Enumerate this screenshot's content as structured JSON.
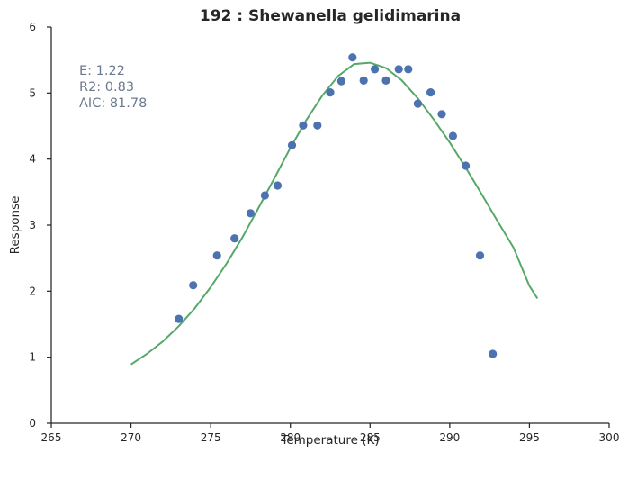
{
  "chart_data": {
    "type": "scatter",
    "title": "192 : Shewanella gelidimarina",
    "xlabel": "Temperature (K)",
    "ylabel": "Response",
    "xlim": [
      265,
      300
    ],
    "ylim": [
      0,
      6
    ],
    "x_ticks": [
      "265",
      "270",
      "275",
      "280",
      "285",
      "290",
      "295",
      "300"
    ],
    "y_ticks": [
      "0",
      "1",
      "2",
      "3",
      "4",
      "5",
      "6"
    ],
    "grid": false,
    "stats": {
      "e_label": "E:  1.22",
      "r2_label": "R2:  0.83",
      "aic_label": "AIC: 81.78"
    },
    "colors": {
      "points": "#4c72b0",
      "fit_line": "#55a868",
      "stats_text": "#6c7a8f"
    },
    "series": [
      {
        "type": "scatter",
        "x": [
          273.0,
          273.9,
          275.4,
          276.5,
          277.5,
          278.4,
          279.2,
          280.1,
          280.8,
          281.7,
          282.5,
          283.2,
          283.9,
          284.6,
          285.3,
          286.0,
          286.8,
          287.4,
          288.0,
          288.8,
          289.5,
          290.2,
          291.0,
          291.9,
          292.7
        ],
        "y": [
          1.58,
          2.09,
          2.54,
          2.8,
          3.18,
          3.45,
          3.6,
          4.21,
          4.51,
          4.51,
          5.01,
          5.18,
          5.54,
          5.19,
          5.36,
          5.19,
          5.36,
          5.36,
          4.84,
          5.01,
          4.68,
          4.35,
          3.9,
          2.54,
          1.05
        ]
      },
      {
        "type": "line",
        "x": [
          270.0,
          271.0,
          272.0,
          273.0,
          274.0,
          275.0,
          276.0,
          277.0,
          278.0,
          279.0,
          280.0,
          281.0,
          282.0,
          283.0,
          284.0,
          285.0,
          286.0,
          287.0,
          288.0,
          289.0,
          290.0,
          291.0,
          292.0,
          293.0,
          294.0,
          295.0,
          295.5
        ],
        "y": [
          0.89,
          1.05,
          1.24,
          1.47,
          1.74,
          2.06,
          2.42,
          2.82,
          3.26,
          3.71,
          4.17,
          4.59,
          4.96,
          5.26,
          5.44,
          5.46,
          5.38,
          5.19,
          4.92,
          4.6,
          4.25,
          3.87,
          3.47,
          3.06,
          2.66,
          2.08,
          1.89
        ]
      }
    ]
  }
}
